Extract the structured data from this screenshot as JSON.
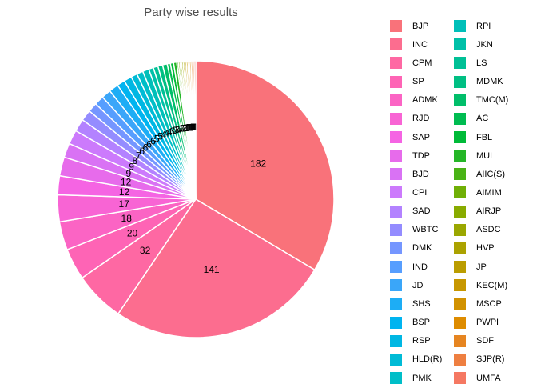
{
  "title": "Party wise results",
  "chart_data": {
    "type": "pie",
    "title": "Party wise results",
    "total_seats": 543,
    "start_angle_deg": 0,
    "direction": "clockwise",
    "grid": false,
    "legend_position": "right",
    "legend_columns": 2,
    "label_color": "#000000",
    "title_color": "#4d4d4d",
    "slice_border_color": "#ffffff",
    "background_color": "#ffffff",
    "series": [
      {
        "name": "BJP",
        "value": 182,
        "color": "#F9727A"
      },
      {
        "name": "INC",
        "value": 141,
        "color": "#FC6D8F"
      },
      {
        "name": "CPM",
        "value": 32,
        "color": "#FE68A3"
      },
      {
        "name": "SP",
        "value": 20,
        "color": "#FE64B5"
      },
      {
        "name": "ADMK",
        "value": 18,
        "color": "#FB64C4"
      },
      {
        "name": "RJD",
        "value": 17,
        "color": "#F864D4"
      },
      {
        "name": "SAP",
        "value": 12,
        "color": "#F564E3"
      },
      {
        "name": "TDP",
        "value": 12,
        "color": "#E76BEB"
      },
      {
        "name": "BJD",
        "value": 9,
        "color": "#D972F4"
      },
      {
        "name": "CPI",
        "value": 9,
        "color": "#CC7AFC"
      },
      {
        "name": "SAD",
        "value": 8,
        "color": "#B382FF"
      },
      {
        "name": "WBTC",
        "value": 7,
        "color": "#948CFF"
      },
      {
        "name": "DMK",
        "value": 6,
        "color": "#7596FF"
      },
      {
        "name": "IND",
        "value": 6,
        "color": "#579EFE"
      },
      {
        "name": "JD",
        "value": 6,
        "color": "#3AA6F9"
      },
      {
        "name": "SHS",
        "value": 6,
        "color": "#1DADF5"
      },
      {
        "name": "BSP",
        "value": 5,
        "color": "#00B4F0"
      },
      {
        "name": "RSP",
        "value": 5,
        "color": "#00B7E3"
      },
      {
        "name": "HLD(R)",
        "value": 4,
        "color": "#00BBD6"
      },
      {
        "name": "PMK",
        "value": 4,
        "color": "#00BEC8"
      },
      {
        "name": "RPI",
        "value": 4,
        "color": "#00BFB9"
      },
      {
        "name": "JKN",
        "value": 3,
        "color": "#00C0A8"
      },
      {
        "name": "LS",
        "value": 3,
        "color": "#00C096"
      },
      {
        "name": "MDMK",
        "value": 3,
        "color": "#00BF83"
      },
      {
        "name": "TMC(M)",
        "value": 3,
        "color": "#00BE6A"
      },
      {
        "name": "AC",
        "value": 2,
        "color": "#00BC51"
      },
      {
        "name": "FBL",
        "value": 2,
        "color": "#00BA38"
      },
      {
        "name": "MUL",
        "value": 2,
        "color": "#25B627"
      },
      {
        "name": "AIIC(S)",
        "value": 1,
        "color": "#4AB316"
      },
      {
        "name": "AIMIM",
        "value": 1,
        "color": "#70AF06"
      },
      {
        "name": "AIRJP",
        "value": 1,
        "color": "#88AB00"
      },
      {
        "name": "ASDC",
        "value": 1,
        "color": "#9AA700"
      },
      {
        "name": "HVP",
        "value": 1,
        "color": "#ABA200"
      },
      {
        "name": "JP",
        "value": 1,
        "color": "#BB9D00"
      },
      {
        "name": "KEC(M)",
        "value": 1,
        "color": "#C79700"
      },
      {
        "name": "MSCP",
        "value": 1,
        "color": "#D29200"
      },
      {
        "name": "PWPI",
        "value": 1,
        "color": "#DE8C00"
      },
      {
        "name": "SDF",
        "value": 1,
        "color": "#E68521"
      },
      {
        "name": "SJP(R)",
        "value": 1,
        "color": "#EE7F41"
      },
      {
        "name": "UMFA",
        "value": 1,
        "color": "#F57862"
      }
    ]
  }
}
